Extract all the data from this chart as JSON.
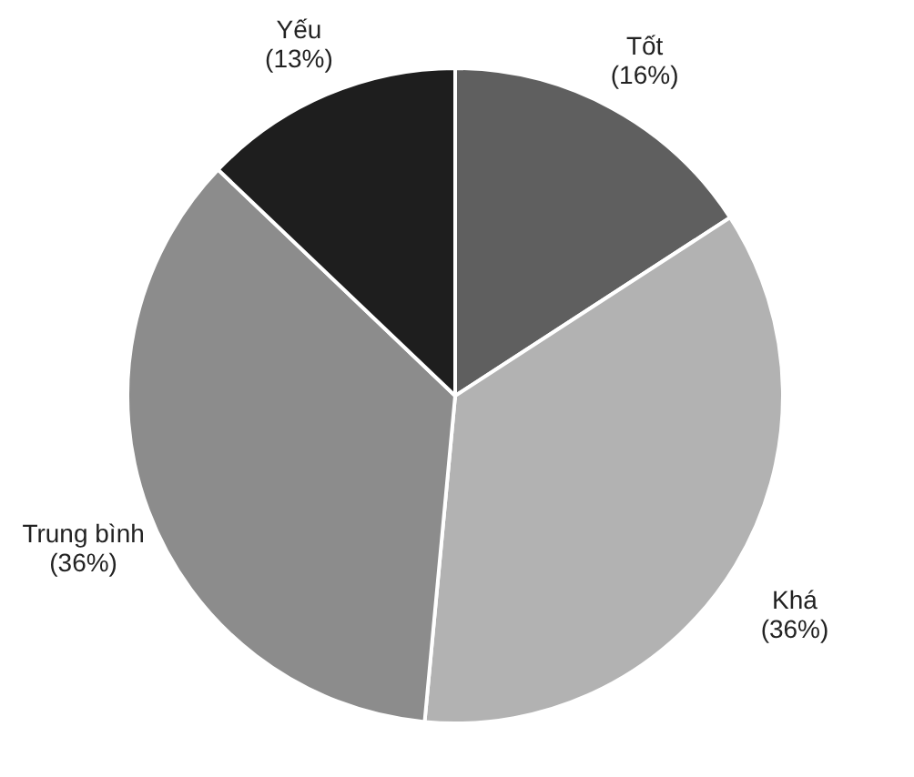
{
  "chart_data": {
    "type": "pie",
    "categories": [
      "Tốt",
      "Khá",
      "Trung bình",
      "Yếu"
    ],
    "values": [
      16,
      36,
      36,
      13
    ],
    "value_labels": [
      "(16%)",
      "(36%)",
      "(36%)",
      "(13%)"
    ],
    "colors": [
      "#5f5f5f",
      "#b2b2b2",
      "#8c8c8c",
      "#1e1e1e"
    ],
    "legend": false
  }
}
